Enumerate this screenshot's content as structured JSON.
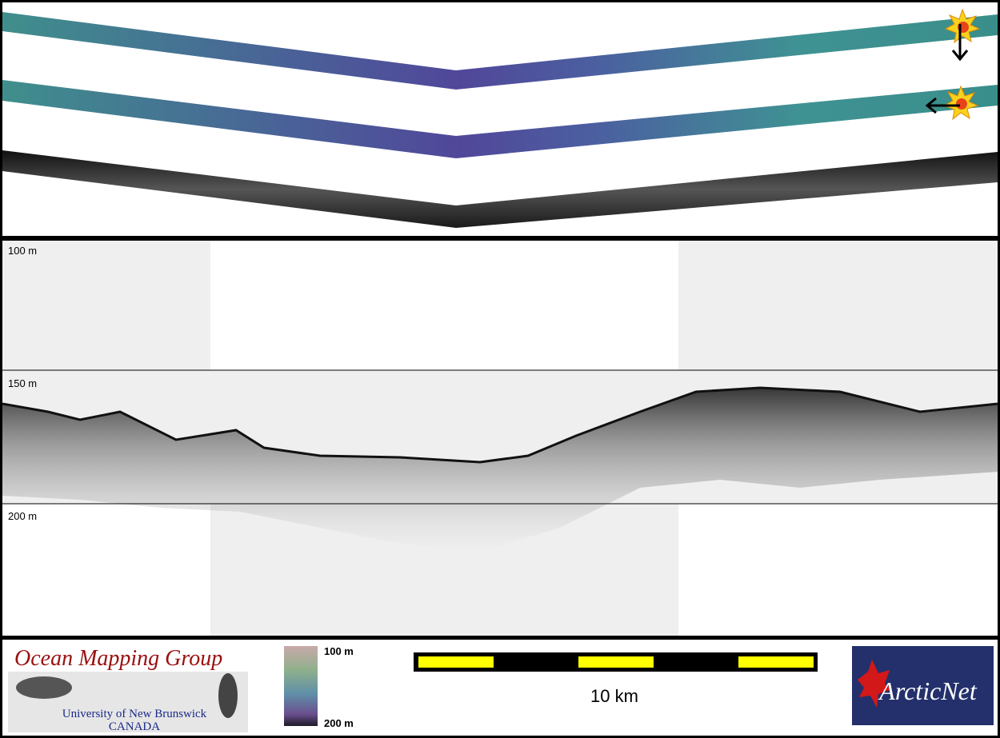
{
  "profile": {
    "depth_labels": [
      "100 m",
      "150 m",
      "200 m"
    ]
  },
  "footer": {
    "logo": {
      "title": "Ocean Mapping Group",
      "university": "University of New Brunswick",
      "country": "CANADA"
    },
    "colorbar": {
      "top_label": "100 m",
      "bottom_label": "200 m"
    },
    "scale_bar": "10 km",
    "partner_logo": "ArcticNet"
  }
}
